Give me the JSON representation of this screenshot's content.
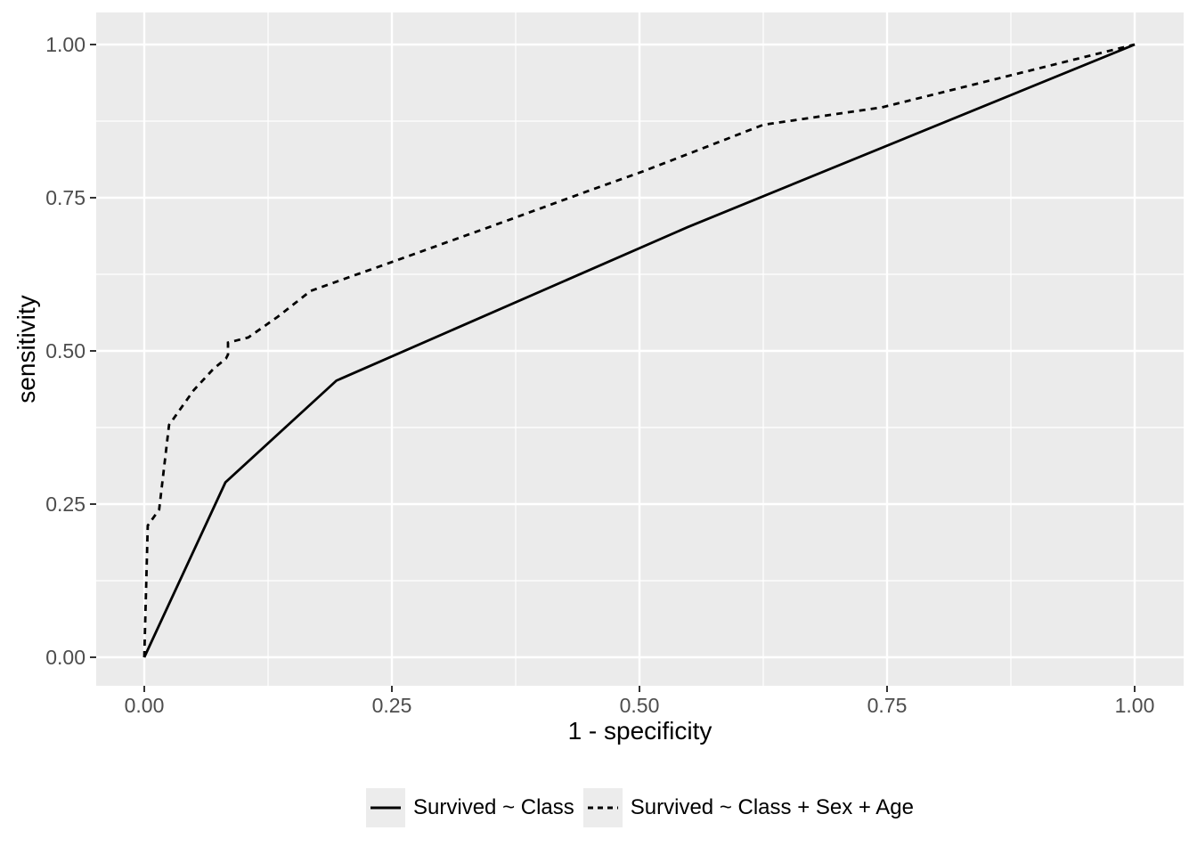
{
  "style": {
    "background": "#FFFFFF",
    "panel_fill": "#EBEBEB",
    "grid_color": "#FFFFFF",
    "tick_mark_color": "#333333",
    "tick_label_color": "#4D4D4D",
    "axis_title_color": "#000000",
    "series_color": "#000000",
    "legend_key_fill": "#ECECEC"
  },
  "chart_data": {
    "type": "line",
    "title": "",
    "xlabel": "1 - specificity",
    "ylabel": "sensitivity",
    "xlim": [
      0,
      1
    ],
    "ylim": [
      0,
      1
    ],
    "grid": true,
    "legend_position": "bottom",
    "x_ticks": {
      "values": [
        0,
        0.25,
        0.5,
        0.75,
        1
      ],
      "labels": [
        "0.00",
        "0.25",
        "0.50",
        "0.75",
        "1.00"
      ]
    },
    "y_ticks": {
      "values": [
        0,
        0.25,
        0.5,
        0.75,
        1
      ],
      "labels": [
        "0.00",
        "0.25",
        "0.50",
        "0.75",
        "1.00"
      ]
    },
    "x_minor_ticks": [
      0.125,
      0.375,
      0.625,
      0.875
    ],
    "y_minor_ticks": [
      0.125,
      0.375,
      0.625,
      0.875
    ],
    "series": [
      {
        "name": "Survived ~ Class",
        "linetype": "solid",
        "points": [
          [
            0,
            0
          ],
          [
            0.0819,
            0.2855
          ],
          [
            0.194,
            0.4515
          ],
          [
            0.5483,
            0.7018
          ],
          [
            1,
            1
          ]
        ]
      },
      {
        "name": "Survived ~ Class + Sex + Age",
        "linetype": "dashed",
        "points": [
          [
            0,
            0
          ],
          [
            0.0035,
            0.215
          ],
          [
            0.015,
            0.241
          ],
          [
            0.025,
            0.379
          ],
          [
            0.05,
            0.436
          ],
          [
            0.07,
            0.471
          ],
          [
            0.0825,
            0.4875
          ],
          [
            0.0845,
            0.494
          ],
          [
            0.0845,
            0.5135
          ],
          [
            0.105,
            0.522
          ],
          [
            0.135,
            0.556
          ],
          [
            0.168,
            0.598
          ],
          [
            0.25,
            0.645
          ],
          [
            0.35,
            0.703
          ],
          [
            0.45,
            0.762
          ],
          [
            0.502,
            0.792
          ],
          [
            0.55,
            0.822
          ],
          [
            0.625,
            0.869
          ],
          [
            0.745,
            0.8975
          ],
          [
            1,
            1
          ]
        ]
      }
    ]
  },
  "legend": {
    "items": [
      {
        "label": "Survived ~ Class",
        "linetype": "solid"
      },
      {
        "label": "Survived ~ Class + Sex + Age",
        "linetype": "dashed"
      }
    ]
  }
}
